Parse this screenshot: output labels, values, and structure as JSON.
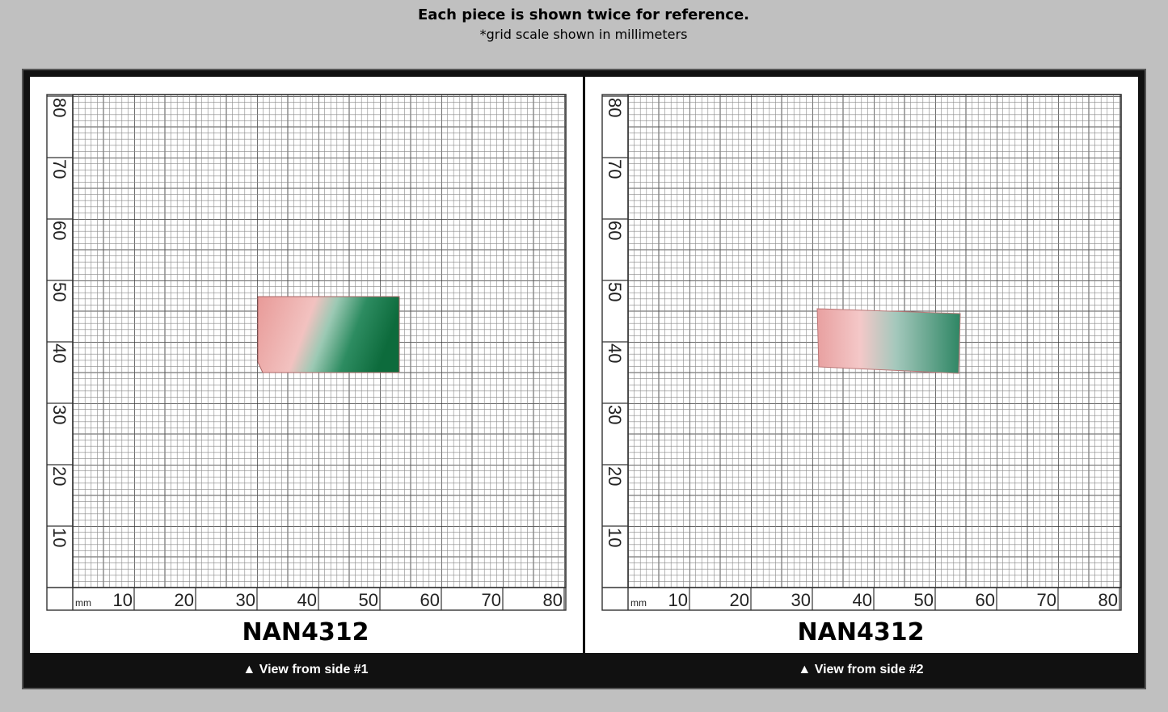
{
  "header": {
    "title": "Each piece is shown twice for reference.",
    "subtitle": "*grid scale shown in millimeters"
  },
  "panels": [
    {
      "product": "NAN4312",
      "caption": "▲ View from side #1",
      "unit": "mm",
      "x_labels": [
        10,
        20,
        30,
        40,
        50,
        60,
        70,
        80
      ],
      "y_labels": [
        10,
        20,
        30,
        40,
        50,
        60,
        70,
        80
      ]
    },
    {
      "product": "NAN4312",
      "caption": "▲ View from side #2",
      "unit": "mm",
      "x_labels": [
        10,
        20,
        30,
        40,
        50,
        60,
        70,
        80
      ],
      "y_labels": [
        10,
        20,
        30,
        40,
        50,
        60,
        70,
        80
      ]
    }
  ]
}
